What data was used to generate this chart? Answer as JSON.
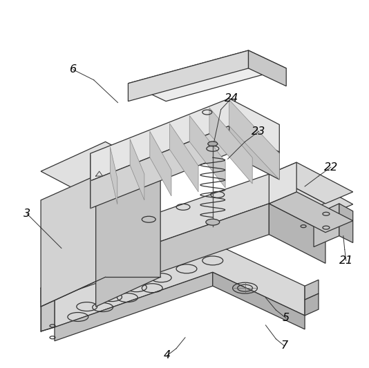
{
  "background_color": "#ffffff",
  "line_color": "#333333",
  "label_color": "#000000",
  "figsize": [
    5.34,
    5.33
  ],
  "dpi": 100,
  "labels": [
    "3",
    "4",
    "5",
    "6",
    "7",
    "21",
    "22",
    "23",
    "24"
  ]
}
